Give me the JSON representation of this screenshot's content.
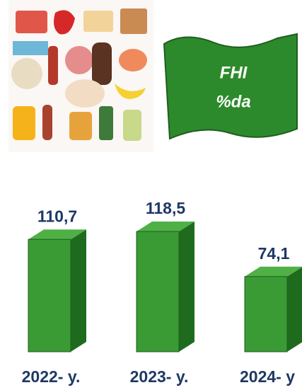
{
  "chart_data": {
    "type": "bar3d",
    "annotations": [
      "FHI",
      "%da"
    ],
    "categories": [
      "2022- y.",
      "2023- y.",
      "2024- y"
    ],
    "values": [
      110.7,
      118.5,
      74.1
    ],
    "value_labels": [
      "110,7",
      "118,5",
      "74,1"
    ],
    "color": "#3a9a34"
  }
}
